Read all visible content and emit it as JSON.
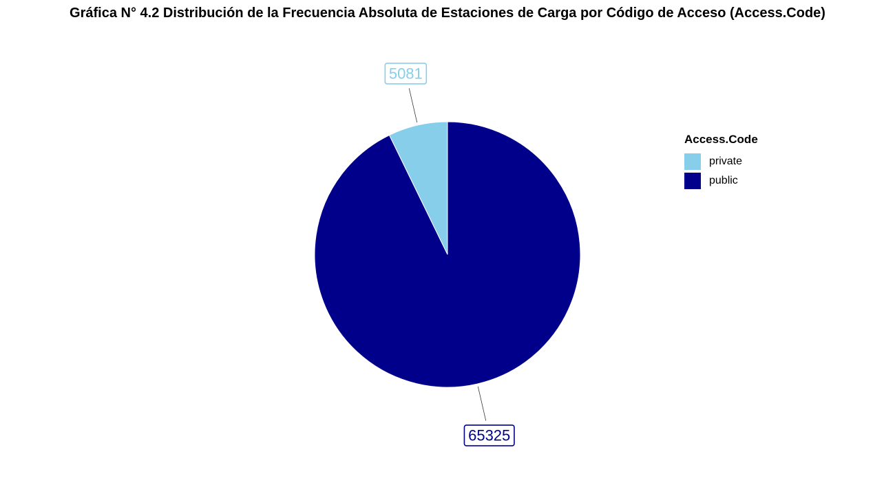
{
  "chart_data": {
    "type": "pie",
    "title": "Gráfica N° 4.2 Distribución de la Frecuencia Absoluta de Estaciones de Carga por Código de Acceso (Access.Code)",
    "categories": [
      "private",
      "public"
    ],
    "values": [
      5081,
      65325
    ],
    "data_labels": [
      "5081",
      "65325"
    ],
    "colors": [
      "#87CEEB",
      "#00008B"
    ],
    "legend": {
      "title": "Access.Code",
      "placement": "right",
      "entries": [
        "private",
        "public"
      ]
    }
  }
}
